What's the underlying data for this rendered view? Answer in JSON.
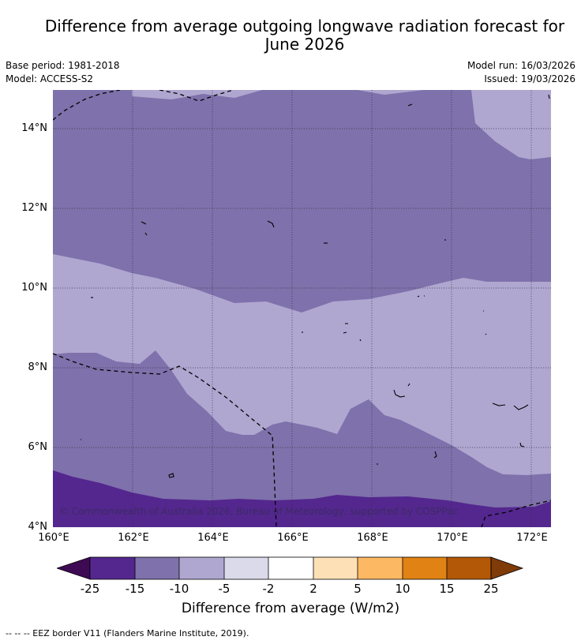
{
  "title": "Difference from average outgoing longwave radiation forecast for June 2026",
  "title_line1": "Difference from average outgoing longwave radiation forecast for",
  "title_line2": "June 2026",
  "meta": {
    "base_period": "Base period: 1981-2018",
    "model": "Model: ACCESS-S2",
    "model_run": "Model run: 16/03/2026",
    "issued": "Issued: 19/03/2026"
  },
  "map": {
    "lat_labels": [
      "14°N",
      "12°N",
      "10°N",
      "8°N",
      "6°N",
      "4°N"
    ],
    "lon_labels": [
      "160°E",
      "162°E",
      "164°E",
      "166°E",
      "168°E",
      "170°E",
      "172°E"
    ],
    "copyright": "© Commonwealth of Australia 2026, Bureau of Meteorology, supported by COSPPac"
  },
  "colorbar": {
    "ticks": [
      "-25",
      "-15",
      "-10",
      "-5",
      "-2",
      "2",
      "5",
      "10",
      "15",
      "25"
    ],
    "colors": [
      "#3d0a53",
      "#54278f",
      "#7f71ab",
      "#afa7d0",
      "#dadaeb",
      "#ffffff",
      "#fee0b6",
      "#fdb863",
      "#e08214",
      "#b35806",
      "#7f3b08"
    ],
    "title": "Difference from average (W/m2)"
  },
  "footnote": "--  --  -- EEZ border V11 (Flanders Marine Institute, 2019)."
}
